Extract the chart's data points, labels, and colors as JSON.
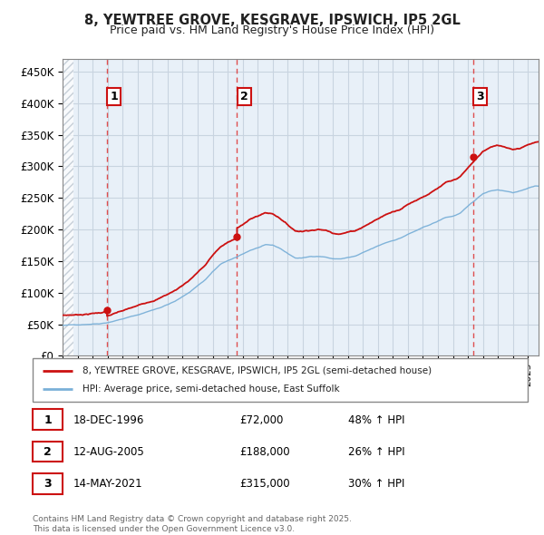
{
  "title_line1": "8, YEWTREE GROVE, KESGRAVE, IPSWICH, IP5 2GL",
  "title_line2": "Price paid vs. HM Land Registry's House Price Index (HPI)",
  "ylim": [
    0,
    470000
  ],
  "yticks": [
    0,
    50000,
    100000,
    150000,
    200000,
    250000,
    300000,
    350000,
    400000,
    450000
  ],
  "xlim_start": 1994.0,
  "xlim_end": 2025.7,
  "background_color": "#ffffff",
  "plot_bg_color": "#e8f0f8",
  "grid_color": "#c8d4e0",
  "red_line_color": "#cc1111",
  "blue_line_color": "#7ab0d8",
  "sale_vline_color": "#dd3333",
  "sales": [
    {
      "date": 1996.96,
      "price": 72000,
      "label": "1"
    },
    {
      "date": 2005.62,
      "price": 188000,
      "label": "2"
    },
    {
      "date": 2021.37,
      "price": 315000,
      "label": "3"
    }
  ],
  "legend_line1": "8, YEWTREE GROVE, KESGRAVE, IPSWICH, IP5 2GL (semi-detached house)",
  "legend_line2": "HPI: Average price, semi-detached house, East Suffolk",
  "footer_line1": "Contains HM Land Registry data © Crown copyright and database right 2025.",
  "footer_line2": "This data is licensed under the Open Government Licence v3.0.",
  "table": [
    {
      "num": "1",
      "date": "18-DEC-1996",
      "price": "£72,000",
      "change": "48% ↑ HPI"
    },
    {
      "num": "2",
      "date": "12-AUG-2005",
      "price": "£188,000",
      "change": "26% ↑ HPI"
    },
    {
      "num": "3",
      "date": "14-MAY-2021",
      "price": "£315,000",
      "change": "30% ↑ HPI"
    }
  ],
  "hpi_years": [
    1994,
    1994.5,
    1995,
    1995.5,
    1996,
    1996.5,
    1997,
    1997.5,
    1998,
    1998.5,
    1999,
    1999.5,
    2000,
    2000.5,
    2001,
    2001.5,
    2002,
    2002.5,
    2003,
    2003.5,
    2004,
    2004.5,
    2005,
    2005.5,
    2006,
    2006.5,
    2007,
    2007.5,
    2008,
    2008.5,
    2009,
    2009.5,
    2010,
    2010.5,
    2011,
    2011.5,
    2012,
    2012.5,
    2013,
    2013.5,
    2014,
    2014.5,
    2015,
    2015.5,
    2016,
    2016.5,
    2017,
    2017.5,
    2018,
    2018.5,
    2019,
    2019.5,
    2020,
    2020.5,
    2021,
    2021.5,
    2022,
    2022.5,
    2023,
    2023.5,
    2024,
    2024.5,
    2025,
    2025.5
  ],
  "hpi_values": [
    48000,
    48500,
    49000,
    50000,
    51000,
    52000,
    54000,
    57000,
    60000,
    63000,
    66000,
    70000,
    74000,
    78000,
    83000,
    88000,
    95000,
    103000,
    113000,
    122000,
    135000,
    146000,
    152000,
    156000,
    162000,
    168000,
    172000,
    176000,
    175000,
    170000,
    162000,
    155000,
    155000,
    157000,
    158000,
    157000,
    154000,
    154000,
    156000,
    158000,
    163000,
    168000,
    173000,
    178000,
    182000,
    186000,
    192000,
    197000,
    202000,
    207000,
    212000,
    218000,
    220000,
    225000,
    235000,
    245000,
    255000,
    260000,
    262000,
    260000,
    258000,
    260000,
    265000,
    268000
  ]
}
